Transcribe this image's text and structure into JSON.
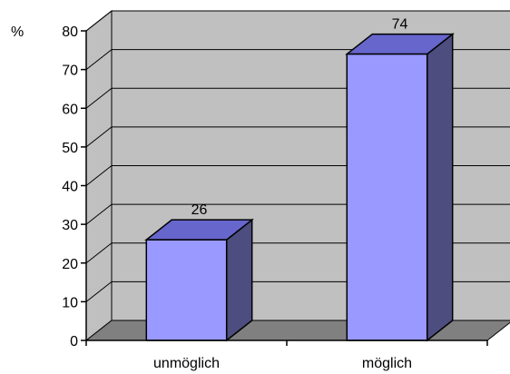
{
  "chart_data": {
    "type": "bar",
    "style": "3d-column",
    "categories": [
      "unmöglich",
      "möglich"
    ],
    "values": [
      26,
      74
    ],
    "data_labels": [
      "26",
      "74"
    ],
    "y_unit_label": "%",
    "ylim": [
      0,
      80
    ],
    "y_ticks": [
      "0",
      "10",
      "20",
      "30",
      "40",
      "50",
      "60",
      "70",
      "80"
    ],
    "grid": true,
    "legend": "none",
    "colors": {
      "bar_front": "#9999FF",
      "bar_top": "#6666CC",
      "bar_side": "#4D4D80",
      "back_wall": "#C0C0C0",
      "floor": "#808080",
      "outline": "#000000"
    }
  }
}
